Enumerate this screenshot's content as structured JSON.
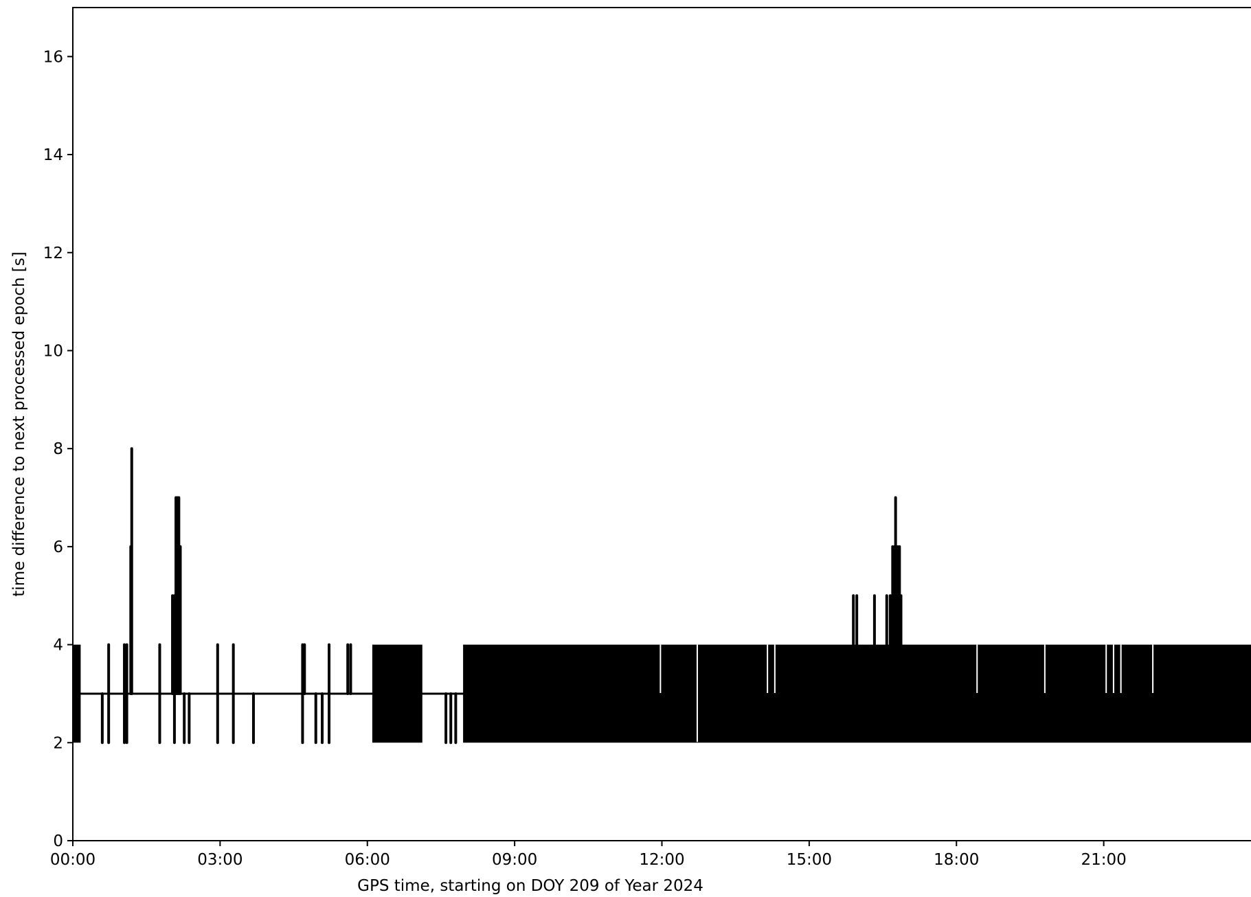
{
  "chart_data": {
    "type": "line",
    "title": "",
    "xlabel": "GPS time, starting on DOY 209 of Year 2024",
    "ylabel": "time difference to next processed epoch [s]",
    "x_unit": "hours",
    "xlim": [
      0,
      24
    ],
    "ylim": [
      0,
      17
    ],
    "x_ticks": [
      {
        "value": 0,
        "label": "00:00"
      },
      {
        "value": 3,
        "label": "03:00"
      },
      {
        "value": 6,
        "label": "06:00"
      },
      {
        "value": 9,
        "label": "09:00"
      },
      {
        "value": 12,
        "label": "12:00"
      },
      {
        "value": 15,
        "label": "15:00"
      },
      {
        "value": 18,
        "label": "18:00"
      },
      {
        "value": 21,
        "label": "21:00"
      }
    ],
    "y_ticks": [
      {
        "value": 0,
        "label": "0"
      },
      {
        "value": 2,
        "label": "2"
      },
      {
        "value": 4,
        "label": "4"
      },
      {
        "value": 6,
        "label": "6"
      },
      {
        "value": 8,
        "label": "8"
      },
      {
        "value": 10,
        "label": "10"
      },
      {
        "value": 12,
        "label": "12"
      },
      {
        "value": 14,
        "label": "14"
      },
      {
        "value": 16,
        "label": "16"
      }
    ],
    "grid": false,
    "baseline": 3,
    "line_color": "#000000",
    "dense_bands": [
      {
        "start": 0.0,
        "end": 0.16,
        "min": 2,
        "max": 4
      },
      {
        "start": 6.1,
        "end": 7.12,
        "min": 2,
        "max": 4
      },
      {
        "start": 7.95,
        "end": 24.0,
        "min": 2,
        "max": 4
      }
    ],
    "spikes": [
      {
        "x": 0.6,
        "min": 2,
        "max": 3
      },
      {
        "x": 0.73,
        "min": 2,
        "max": 4
      },
      {
        "x": 1.05,
        "min": 2,
        "max": 4
      },
      {
        "x": 1.1,
        "min": 2,
        "max": 4
      },
      {
        "x": 1.18,
        "min": 3,
        "max": 6
      },
      {
        "x": 1.2,
        "min": 3,
        "max": 8
      },
      {
        "x": 1.77,
        "min": 2,
        "max": 4
      },
      {
        "x": 2.03,
        "min": 3,
        "max": 5
      },
      {
        "x": 2.07,
        "min": 2,
        "max": 5
      },
      {
        "x": 2.1,
        "min": 3,
        "max": 7
      },
      {
        "x": 2.13,
        "min": 3,
        "max": 7
      },
      {
        "x": 2.16,
        "min": 3,
        "max": 7
      },
      {
        "x": 2.19,
        "min": 3,
        "max": 6
      },
      {
        "x": 2.27,
        "min": 2,
        "max": 3
      },
      {
        "x": 2.37,
        "min": 2,
        "max": 3
      },
      {
        "x": 2.95,
        "min": 2,
        "max": 4
      },
      {
        "x": 3.27,
        "min": 2,
        "max": 4
      },
      {
        "x": 3.68,
        "min": 2,
        "max": 3
      },
      {
        "x": 4.68,
        "min": 2,
        "max": 4
      },
      {
        "x": 4.72,
        "min": 3,
        "max": 4
      },
      {
        "x": 4.95,
        "min": 2,
        "max": 3
      },
      {
        "x": 5.08,
        "min": 2,
        "max": 3
      },
      {
        "x": 5.22,
        "min": 2,
        "max": 4
      },
      {
        "x": 5.6,
        "min": 3,
        "max": 4
      },
      {
        "x": 5.66,
        "min": 3,
        "max": 4
      },
      {
        "x": 7.6,
        "min": 2,
        "max": 3
      },
      {
        "x": 7.7,
        "min": 2,
        "max": 3
      },
      {
        "x": 7.8,
        "min": 2,
        "max": 3
      },
      {
        "x": 15.9,
        "min": 3,
        "max": 5
      },
      {
        "x": 15.97,
        "min": 3,
        "max": 5
      },
      {
        "x": 16.33,
        "min": 3,
        "max": 5
      },
      {
        "x": 16.58,
        "min": 3,
        "max": 5
      },
      {
        "x": 16.65,
        "min": 3,
        "max": 5
      },
      {
        "x": 16.7,
        "min": 3,
        "max": 6
      },
      {
        "x": 16.74,
        "min": 3,
        "max": 6
      },
      {
        "x": 16.76,
        "min": 3,
        "max": 7
      },
      {
        "x": 16.8,
        "min": 3,
        "max": 6
      },
      {
        "x": 16.84,
        "min": 3,
        "max": 6
      },
      {
        "x": 16.87,
        "min": 3,
        "max": 5
      }
    ],
    "gaps": [
      {
        "x": 11.97,
        "min": 3,
        "max": 4
      },
      {
        "x": 12.72,
        "min": 2,
        "max": 4
      },
      {
        "x": 14.15,
        "min": 3,
        "max": 4
      },
      {
        "x": 14.3,
        "min": 3,
        "max": 4
      },
      {
        "x": 18.42,
        "min": 3,
        "max": 4
      },
      {
        "x": 19.8,
        "min": 3,
        "max": 4
      },
      {
        "x": 21.05,
        "min": 3,
        "max": 4
      },
      {
        "x": 21.2,
        "min": 3,
        "max": 4
      },
      {
        "x": 21.35,
        "min": 3,
        "max": 4
      },
      {
        "x": 22.0,
        "min": 3,
        "max": 4
      }
    ]
  }
}
